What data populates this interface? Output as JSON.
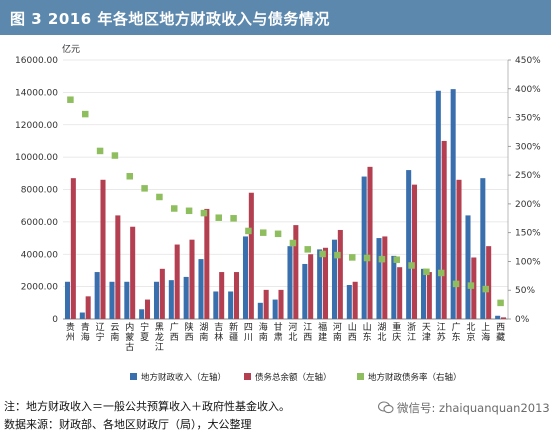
{
  "title": "图 3 2016 年各地区地方财政收入与债务情况",
  "notes": {
    "line1": "注：地方财政收入＝一般公共预算收入＋政府性基金收入。",
    "line2": "数据来源：财政部、各地区财政厅（局），大公整理"
  },
  "watermark": "微信号: zhaiquanquan2013",
  "colors": {
    "header": "#5c88ad",
    "revenue": "#3a6fad",
    "debt": "#b33f50",
    "ratio": "#8fbe5f"
  },
  "chart_data": {
    "type": "bar",
    "y_unit": "亿元",
    "categories": [
      "贵州",
      "青海",
      "辽宁",
      "云南",
      "内蒙古",
      "宁夏",
      "黑龙江",
      "广西",
      "陕西",
      "湖南",
      "吉林",
      "新疆",
      "四川",
      "海南",
      "甘肃",
      "河北",
      "江西",
      "福建",
      "河南",
      "山西",
      "山东",
      "湖北",
      "重庆",
      "浙江",
      "天津",
      "江苏",
      "广东",
      "北京",
      "上海",
      "西藏"
    ],
    "ylim": [
      0,
      16000
    ],
    "yticks": [
      "0",
      "2000.00",
      "4000.00",
      "6000.00",
      "8000.00",
      "10000.00",
      "12000.00",
      "14000.00",
      "16000.00"
    ],
    "y2lim": [
      0,
      450
    ],
    "y2ticks": [
      "0%",
      "50%",
      "100%",
      "150%",
      "200%",
      "250%",
      "300%",
      "350%",
      "400%",
      "450%"
    ],
    "series": [
      {
        "name": "地方财政收入（左轴）",
        "kind": "bar",
        "axis": "left",
        "values": [
          2300,
          400,
          2900,
          2300,
          2300,
          600,
          2300,
          2400,
          2600,
          3700,
          1700,
          1700,
          5100,
          1000,
          1200,
          4500,
          3400,
          4300,
          4900,
          2100,
          8800,
          5000,
          3900,
          9200,
          3100,
          14100,
          14200,
          6400,
          8700,
          200
        ]
      },
      {
        "name": "债务总余额（左轴）",
        "kind": "bar",
        "axis": "left",
        "values": [
          8700,
          1400,
          8600,
          6400,
          5700,
          1200,
          3100,
          4600,
          4900,
          6800,
          2900,
          2900,
          7800,
          1800,
          1800,
          5800,
          4000,
          4400,
          5500,
          2300,
          9400,
          5100,
          3200,
          8300,
          2900,
          11000,
          8600,
          3800,
          4500,
          100
        ]
      },
      {
        "name": "地方财政债务率（右轴）",
        "kind": "dot",
        "axis": "right",
        "values": [
          381,
          356,
          292,
          284,
          248,
          227,
          212,
          192,
          188,
          184,
          176,
          175,
          153,
          150,
          148,
          132,
          121,
          113,
          111,
          107,
          106,
          104,
          103,
          93,
          82,
          80,
          61,
          58,
          52,
          28
        ]
      }
    ]
  }
}
